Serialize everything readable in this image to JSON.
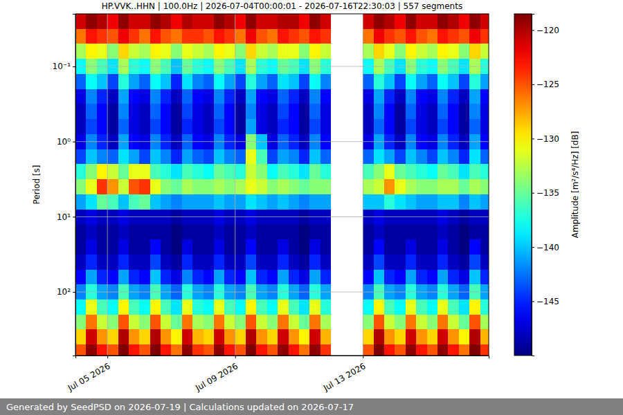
{
  "chart_data": {
    "type": "heatmap",
    "title": "HP.VVK..HHN | 100.0Hz | 2026-07-04T00:00:01 - 2026-07-16T22:30:03 | 557 segments",
    "y_label": "Period [s]",
    "color_label": "Amplitude [m²/s⁴/Hz] [dB]",
    "footer": "Generated by SeedPSD on 2026-07-19 | Calculations updated on 2026-07-17",
    "log": "y",
    "grid": true,
    "xlim": [
      "2026-07-04T00:00:01",
      "2026-07-16T22:30:03"
    ],
    "xticks": [
      {
        "value": "2026-07-05T00:00:00",
        "label": "Jul 05 2026"
      },
      {
        "value": "2026-07-09T00:00:00",
        "label": "Jul 09 2026"
      },
      {
        "value": "2026-07-13T00:00:00",
        "label": "Jul 13 2026"
      }
    ],
    "ylim": [
      0.02,
      700
    ],
    "yticks": [
      {
        "value": 0.1,
        "label": "10⁻¹"
      },
      {
        "value": 1,
        "label": "10⁰"
      },
      {
        "value": 10,
        "label": "10¹"
      },
      {
        "value": 100,
        "label": "10²"
      }
    ],
    "color_range": [
      -150,
      -118.5
    ],
    "color_ticks": [
      {
        "value": -145,
        "label": "−145"
      },
      {
        "value": -140,
        "label": "−140"
      },
      {
        "value": -135,
        "label": "−135"
      },
      {
        "value": -130,
        "label": "−130"
      },
      {
        "value": -125,
        "label": "−125"
      },
      {
        "value": -120,
        "label": "−120"
      }
    ],
    "x": [
      "2026-07-04T00:00:00",
      "2026-07-04T08:00:00",
      "2026-07-04T16:00:00",
      "2026-07-05T00:00:00",
      "2026-07-05T08:00:00",
      "2026-07-05T16:00:00",
      "2026-07-06T00:00:00",
      "2026-07-06T08:00:00",
      "2026-07-06T16:00:00",
      "2026-07-07T00:00:00",
      "2026-07-07T08:00:00",
      "2026-07-07T16:00:00",
      "2026-07-08T00:00:00",
      "2026-07-08T08:00:00",
      "2026-07-08T16:00:00",
      "2026-07-09T00:00:00",
      "2026-07-09T08:00:00",
      "2026-07-09T16:00:00",
      "2026-07-10T00:00:00",
      "2026-07-10T08:00:00",
      "2026-07-10T16:00:00",
      "2026-07-11T00:00:00",
      "2026-07-11T08:00:00",
      "2026-07-11T16:00:00",
      "2026-07-12T00:00:00",
      "2026-07-12T08:00:00",
      "2026-07-12T16:00:00",
      "2026-07-13T00:00:00",
      "2026-07-13T08:00:00",
      "2026-07-13T16:00:00",
      "2026-07-14T00:00:00",
      "2026-07-14T08:00:00",
      "2026-07-14T16:00:00",
      "2026-07-15T00:00:00",
      "2026-07-15T08:00:00",
      "2026-07-15T16:00:00",
      "2026-07-16T00:00:00",
      "2026-07-16T08:00:00",
      "2026-07-16T16:00:00"
    ],
    "periods": [
      0.025,
      0.04,
      0.063,
      0.1,
      0.16,
      0.25,
      0.4,
      0.63,
      1,
      1.6,
      2.5,
      4,
      6.3,
      10,
      16,
      25,
      40,
      63,
      100,
      160,
      250,
      400,
      630
    ],
    "values": [
      [
        -121,
        -119,
        -120,
        -122,
        -119,
        -121,
        -121,
        -119,
        -120,
        -122,
        -120,
        -121,
        -121,
        -119,
        -120,
        -122,
        -119,
        -121,
        -121,
        -120,
        -120,
        -122,
        -119,
        -121,
        null,
        null,
        null,
        -121,
        -119,
        -120,
        -122,
        -119,
        -121,
        -121,
        -119,
        -120,
        -122,
        -119,
        -121
      ],
      [
        -126,
        -123,
        -124,
        -125,
        -122,
        -124,
        -126,
        -123,
        -125,
        -126,
        -124,
        -124,
        -125,
        -123,
        -124,
        -126,
        -122,
        -125,
        -126,
        -123,
        -124,
        -125,
        -123,
        -124,
        null,
        null,
        null,
        -126,
        -122,
        -124,
        -125,
        -123,
        -125,
        -126,
        -123,
        -124,
        -125,
        -122,
        -124
      ],
      [
        -133,
        -130,
        -131,
        -134,
        -129,
        -132,
        -133,
        -130,
        -131,
        -134,
        -131,
        -132,
        -133,
        -130,
        -131,
        -134,
        -129,
        -132,
        -133,
        -131,
        -131,
        -134,
        -130,
        -132,
        null,
        null,
        null,
        -133,
        -129,
        -131,
        -134,
        -130,
        -132,
        -133,
        -130,
        -131,
        -134,
        -129,
        -132
      ],
      [
        -138,
        -134,
        -136,
        -139,
        -133,
        -137,
        -138,
        -134,
        -136,
        -140,
        -135,
        -137,
        -138,
        -134,
        -136,
        -139,
        -133,
        -137,
        -138,
        -135,
        -136,
        -139,
        -134,
        -137,
        null,
        null,
        null,
        -138,
        -133,
        -136,
        -139,
        -134,
        -137,
        -138,
        -134,
        -136,
        -139,
        -133,
        -137
      ],
      [
        -143,
        -138,
        -140,
        -144,
        -137,
        -141,
        -143,
        -138,
        -140,
        -145,
        -139,
        -142,
        -143,
        -138,
        -141,
        -144,
        -137,
        -141,
        -143,
        -139,
        -140,
        -144,
        -138,
        -142,
        null,
        null,
        null,
        -143,
        -137,
        -140,
        -144,
        -138,
        -141,
        -143,
        -138,
        -140,
        -144,
        -137,
        -141
      ],
      [
        -147,
        -142,
        -145,
        -148,
        -141,
        -146,
        -147,
        -142,
        -145,
        -148,
        -143,
        -146,
        -147,
        -142,
        -145,
        -148,
        -141,
        -146,
        -147,
        -143,
        -145,
        -148,
        -142,
        -146,
        null,
        null,
        null,
        -147,
        -141,
        -145,
        -148,
        -142,
        -146,
        -147,
        -142,
        -145,
        -148,
        -141,
        -146
      ],
      [
        -148,
        -143,
        -146,
        -149,
        -142,
        -147,
        -148,
        -143,
        -146,
        -149,
        -144,
        -147,
        -148,
        -143,
        -146,
        -149,
        -142,
        -147,
        -148,
        -144,
        -146,
        -149,
        -143,
        -147,
        null,
        null,
        null,
        -148,
        -142,
        -146,
        -149,
        -143,
        -147,
        -148,
        -143,
        -146,
        -149,
        -142,
        -147
      ],
      [
        -148,
        -144,
        -146,
        -149,
        -143,
        -147,
        -148,
        -144,
        -146,
        -149,
        -145,
        -147,
        -148,
        -144,
        -146,
        -149,
        -141,
        -147,
        -148,
        -145,
        -146,
        -149,
        -144,
        -147,
        null,
        null,
        null,
        -148,
        -143,
        -146,
        -149,
        -144,
        -147,
        -148,
        -144,
        -146,
        -149,
        -143,
        -147
      ],
      [
        -147,
        -142,
        -145,
        -148,
        -141,
        -146,
        -147,
        -142,
        -145,
        -148,
        -143,
        -146,
        -147,
        -142,
        -145,
        -147,
        -134,
        -140,
        -147,
        -143,
        -145,
        -148,
        -142,
        -146,
        null,
        null,
        null,
        -147,
        -141,
        -145,
        -148,
        -142,
        -146,
        -147,
        -142,
        -145,
        -148,
        -141,
        -146
      ],
      [
        -144,
        -140,
        -142,
        -143,
        -139,
        -141,
        -144,
        -140,
        -142,
        -145,
        -141,
        -143,
        -144,
        -140,
        -142,
        -143,
        -131,
        -136,
        -144,
        -141,
        -142,
        -145,
        -140,
        -143,
        null,
        null,
        null,
        -143,
        -139,
        -141,
        -144,
        -140,
        -142,
        -144,
        -140,
        -142,
        -145,
        -139,
        -143
      ],
      [
        -137,
        -134,
        -130,
        -132,
        -135,
        -131,
        -131,
        -136,
        -137,
        -139,
        -136,
        -137,
        -138,
        -135,
        -136,
        -137,
        -132,
        -134,
        -138,
        -136,
        -137,
        -139,
        -135,
        -137,
        null,
        null,
        null,
        -136,
        -134,
        -131,
        -135,
        -136,
        -137,
        -138,
        -135,
        -136,
        -139,
        -136,
        -137
      ],
      [
        -134,
        -131,
        -124,
        -127,
        -132,
        -125,
        -124,
        -131,
        -134,
        -135,
        -133,
        -134,
        -134,
        -133,
        -134,
        -133,
        -131,
        -132,
        -134,
        -133,
        -134,
        -135,
        -134,
        -134,
        null,
        null,
        null,
        -133,
        -132,
        -127,
        -131,
        -133,
        -134,
        -134,
        -133,
        -133,
        -135,
        -133,
        -134
      ],
      [
        -141,
        -139,
        -135,
        -136,
        -140,
        -136,
        -135,
        -140,
        -141,
        -142,
        -141,
        -141,
        -141,
        -140,
        -141,
        -141,
        -139,
        -140,
        -141,
        -140,
        -141,
        -142,
        -141,
        -141,
        null,
        null,
        null,
        -140,
        -140,
        -137,
        -139,
        -140,
        -141,
        -141,
        -140,
        -140,
        -142,
        -140,
        -141
      ],
      [
        -148,
        -147,
        -148,
        -148,
        -147,
        -148,
        -148,
        -148,
        -148,
        -149,
        -148,
        -148,
        -148,
        -147,
        -148,
        -148,
        -147,
        -148,
        -148,
        -148,
        -148,
        -149,
        -148,
        -148,
        null,
        null,
        null,
        -148,
        -147,
        -148,
        -148,
        -148,
        -148,
        -148,
        -147,
        -148,
        -149,
        -148,
        -148
      ],
      [
        -149,
        -148,
        -149,
        -149,
        -148,
        -149,
        -149,
        -149,
        -149,
        -150,
        -149,
        -149,
        -149,
        -148,
        -149,
        -149,
        -148,
        -149,
        -149,
        -149,
        -149,
        -150,
        -149,
        -149,
        null,
        null,
        null,
        -149,
        -148,
        -149,
        -149,
        -149,
        -149,
        -149,
        -148,
        -149,
        -150,
        -149,
        -149
      ],
      [
        -149,
        -147,
        -149,
        -149,
        -147,
        -149,
        -149,
        -146,
        -149,
        -150,
        -147,
        -149,
        -149,
        -147,
        -149,
        -149,
        -146,
        -149,
        -149,
        -147,
        -149,
        -150,
        -147,
        -149,
        null,
        null,
        null,
        -149,
        -146,
        -149,
        -149,
        -147,
        -149,
        -149,
        -147,
        -149,
        -150,
        -146,
        -149
      ],
      [
        -148,
        -145,
        -148,
        -148,
        -145,
        -148,
        -148,
        -144,
        -148,
        -149,
        -145,
        -148,
        -148,
        -145,
        -148,
        -148,
        -144,
        -148,
        -148,
        -145,
        -148,
        -149,
        -145,
        -148,
        null,
        null,
        null,
        -148,
        -144,
        -148,
        -148,
        -145,
        -148,
        -148,
        -145,
        -148,
        -149,
        -144,
        -148
      ],
      [
        -146,
        -141,
        -145,
        -146,
        -141,
        -145,
        -146,
        -140,
        -145,
        -147,
        -142,
        -145,
        -146,
        -141,
        -145,
        -146,
        -140,
        -145,
        -146,
        -141,
        -145,
        -147,
        -141,
        -145,
        null,
        null,
        null,
        -146,
        -140,
        -145,
        -146,
        -141,
        -145,
        -146,
        -141,
        -145,
        -147,
        -140,
        -145
      ],
      [
        -142,
        -137,
        -141,
        -142,
        -136,
        -141,
        -142,
        -136,
        -141,
        -143,
        -137,
        -141,
        -142,
        -137,
        -141,
        -142,
        -136,
        -141,
        -142,
        -137,
        -141,
        -143,
        -137,
        -141,
        null,
        null,
        null,
        -142,
        -136,
        -141,
        -142,
        -137,
        -141,
        -142,
        -137,
        -141,
        -143,
        -136,
        -141
      ],
      [
        -138,
        -131,
        -136,
        -138,
        -130,
        -136,
        -138,
        -130,
        -136,
        -139,
        -131,
        -137,
        -138,
        -131,
        -136,
        -138,
        -130,
        -136,
        -138,
        -131,
        -136,
        -139,
        -131,
        -137,
        null,
        null,
        null,
        -138,
        -130,
        -136,
        -138,
        -131,
        -136,
        -138,
        -131,
        -136,
        -139,
        -130,
        -137
      ],
      [
        -134,
        -126,
        -132,
        -134,
        -125,
        -132,
        -134,
        -125,
        -132,
        -135,
        -126,
        -133,
        -134,
        -126,
        -132,
        -134,
        -125,
        -132,
        -134,
        -126,
        -132,
        -135,
        -126,
        -133,
        null,
        null,
        null,
        -134,
        -125,
        -132,
        -134,
        -126,
        -132,
        -134,
        -126,
        -132,
        -135,
        -125,
        -133
      ],
      [
        -129,
        -121,
        -127,
        -129,
        -120,
        -127,
        -129,
        -120,
        -127,
        -130,
        -121,
        -128,
        -129,
        -121,
        -127,
        -129,
        -120,
        -127,
        -129,
        -121,
        -127,
        -130,
        -121,
        -128,
        null,
        null,
        null,
        -129,
        -120,
        -127,
        -129,
        -121,
        -127,
        -129,
        -121,
        -127,
        -130,
        -120,
        -128
      ],
      [
        -125,
        -119,
        -123,
        -125,
        -118,
        -123,
        -125,
        -118,
        -123,
        -126,
        -119,
        -124,
        -125,
        -119,
        -123,
        -125,
        -118,
        -123,
        -125,
        -119,
        -123,
        -126,
        -119,
        -124,
        null,
        null,
        null,
        -125,
        -118,
        -123,
        -125,
        -119,
        -123,
        -125,
        -119,
        -123,
        -126,
        -118,
        -124
      ]
    ]
  }
}
